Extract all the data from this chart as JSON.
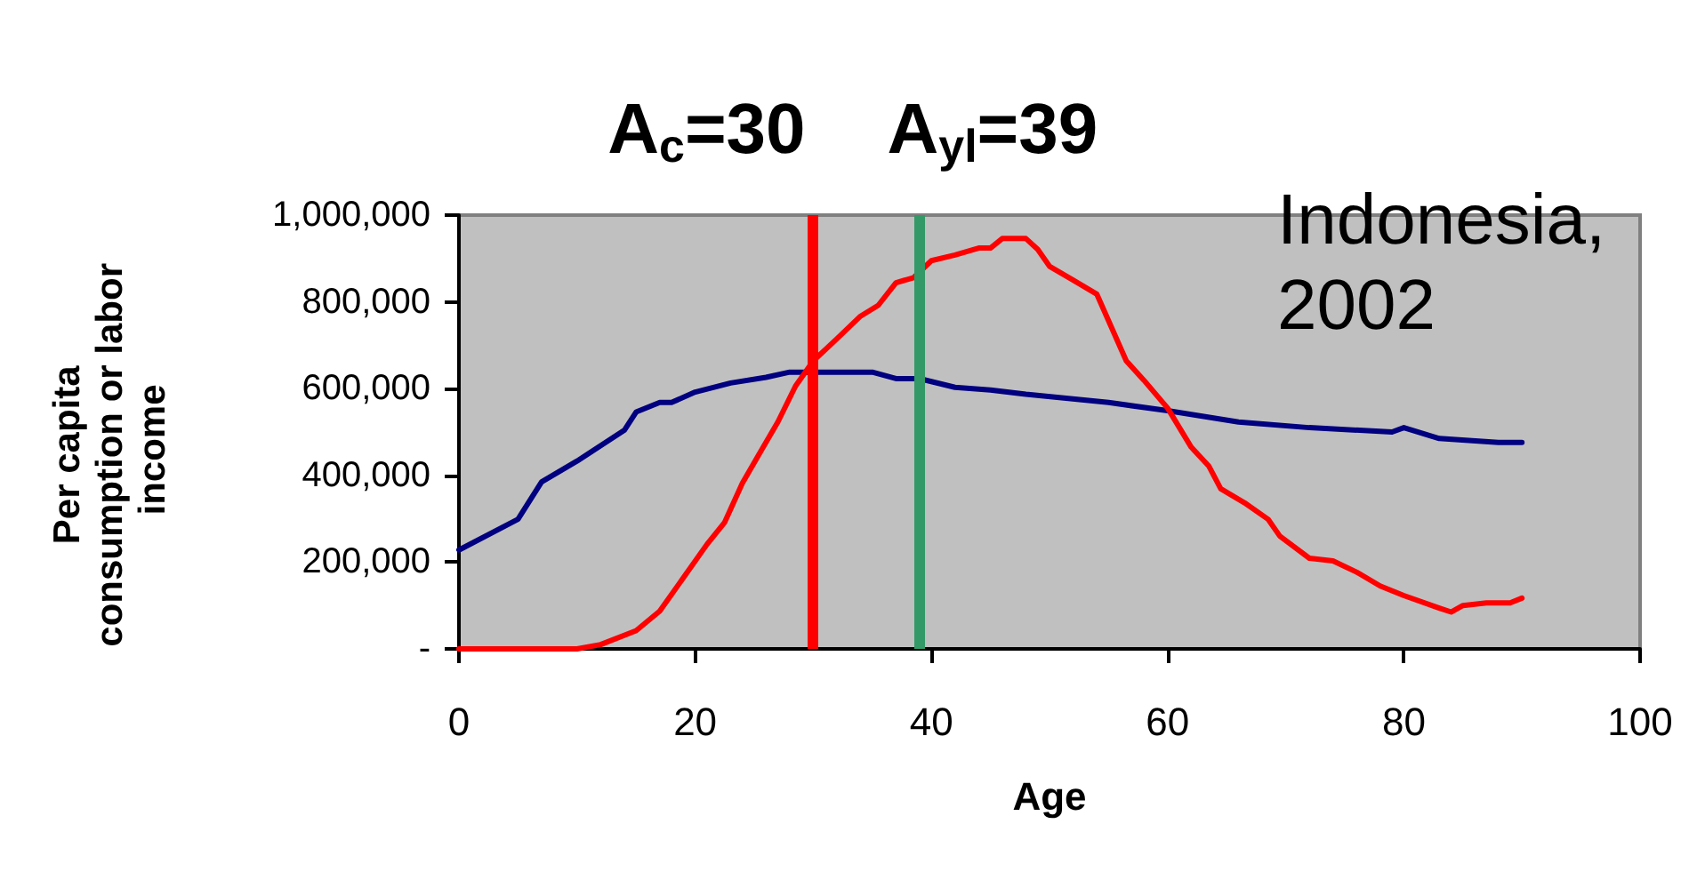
{
  "chart_data": {
    "type": "line",
    "xlabel": "Age",
    "ylabel": "Per capita consumption or labor income",
    "annotations": [
      "Indonesia,\n2002"
    ],
    "xlim": [
      0,
      100
    ],
    "xticks": [
      0,
      20,
      40,
      60,
      80,
      100
    ],
    "ylim": [
      0,
      1000000
    ],
    "yticks": [
      {
        "value": 0,
        "label": "-"
      },
      {
        "value": 200000,
        "label": "200,000"
      },
      {
        "value": 400000,
        "label": "400,000"
      },
      {
        "value": 600000,
        "label": "600,000"
      },
      {
        "value": 800000,
        "label": "800,000"
      },
      {
        "value": 1000000,
        "label": "1,000,000"
      }
    ],
    "line_style": "solid",
    "series": [
      {
        "color": "#000080",
        "x": [
          0,
          5,
          7,
          10,
          14,
          15,
          17,
          18,
          20,
          23,
          26,
          28,
          35,
          37,
          39,
          42,
          45,
          48,
          55,
          60,
          66,
          72,
          79,
          80,
          83,
          88,
          90
        ],
        "values": [
          228000,
          299000,
          385000,
          433000,
          504000,
          546000,
          568000,
          568000,
          592000,
          613000,
          626000,
          638000,
          638000,
          623000,
          623000,
          603000,
          597000,
          587000,
          568000,
          549000,
          523000,
          510000,
          500000,
          510000,
          485000,
          476000,
          476000
        ]
      },
      {
        "color": "#ff0000",
        "x": [
          0,
          10,
          12,
          15,
          17,
          19,
          21,
          22.5,
          24,
          25.5,
          27,
          28.5,
          30,
          32,
          34,
          35.5,
          37,
          38.5,
          40,
          42,
          44,
          45,
          46,
          48,
          49,
          50,
          52,
          54,
          56.5,
          58,
          60,
          62,
          63.5,
          64.5,
          66.5,
          68.5,
          69.5,
          72,
          74,
          76,
          78,
          80,
          83,
          84,
          85,
          87,
          89,
          90
        ],
        "values": [
          0,
          0,
          10000,
          42000,
          87000,
          164000,
          241000,
          292000,
          382000,
          453000,
          523000,
          606000,
          664000,
          715000,
          767000,
          792000,
          844000,
          856000,
          895000,
          908000,
          924000,
          924000,
          946000,
          946000,
          921000,
          882000,
          850000,
          818000,
          664000,
          619000,
          555000,
          465000,
          421000,
          369000,
          337000,
          299000,
          260000,
          209000,
          203000,
          177000,
          145000,
          123000,
          94000,
          85000,
          100000,
          106000,
          106000,
          117000
        ]
      }
    ],
    "ref_lines": [
      {
        "axis": "x",
        "value": 30,
        "label": "A$_{c}$=30",
        "color": "#ff0000"
      },
      {
        "axis": "x",
        "value": 39,
        "label": "A$_{yl}$=39",
        "color": "#339966"
      }
    ]
  }
}
